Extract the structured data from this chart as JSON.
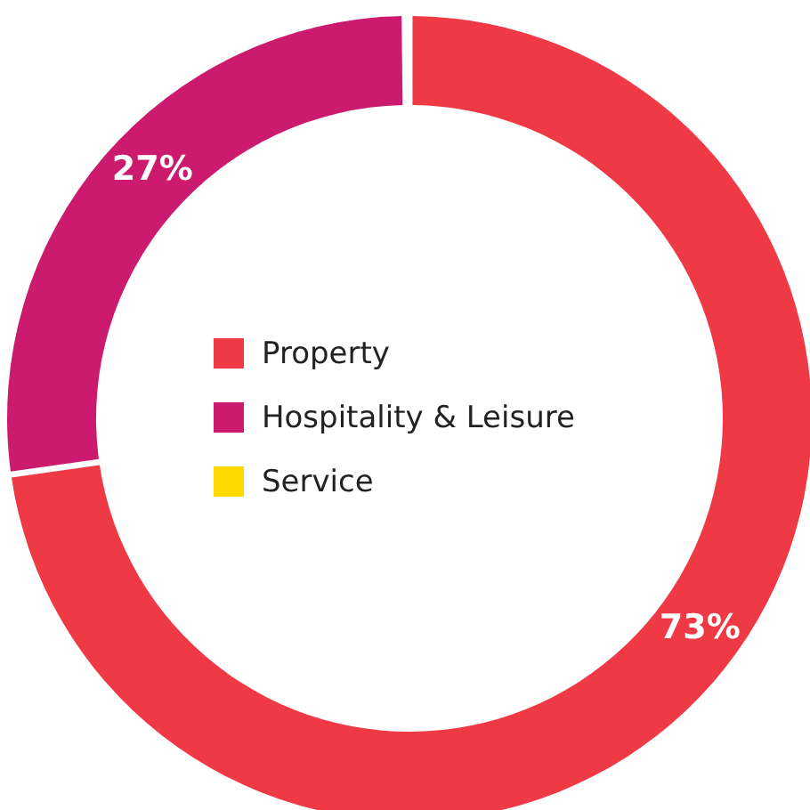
{
  "chart_data": {
    "type": "donut",
    "categories": [
      "Property",
      "Hospitality & Leisure",
      "Service"
    ],
    "values": [
      73,
      27,
      0
    ],
    "colors": [
      "#ef3945",
      "#cc1b6f",
      "#ffd800"
    ],
    "value_labels": [
      "73%",
      "27%",
      null
    ],
    "legend": "center"
  }
}
